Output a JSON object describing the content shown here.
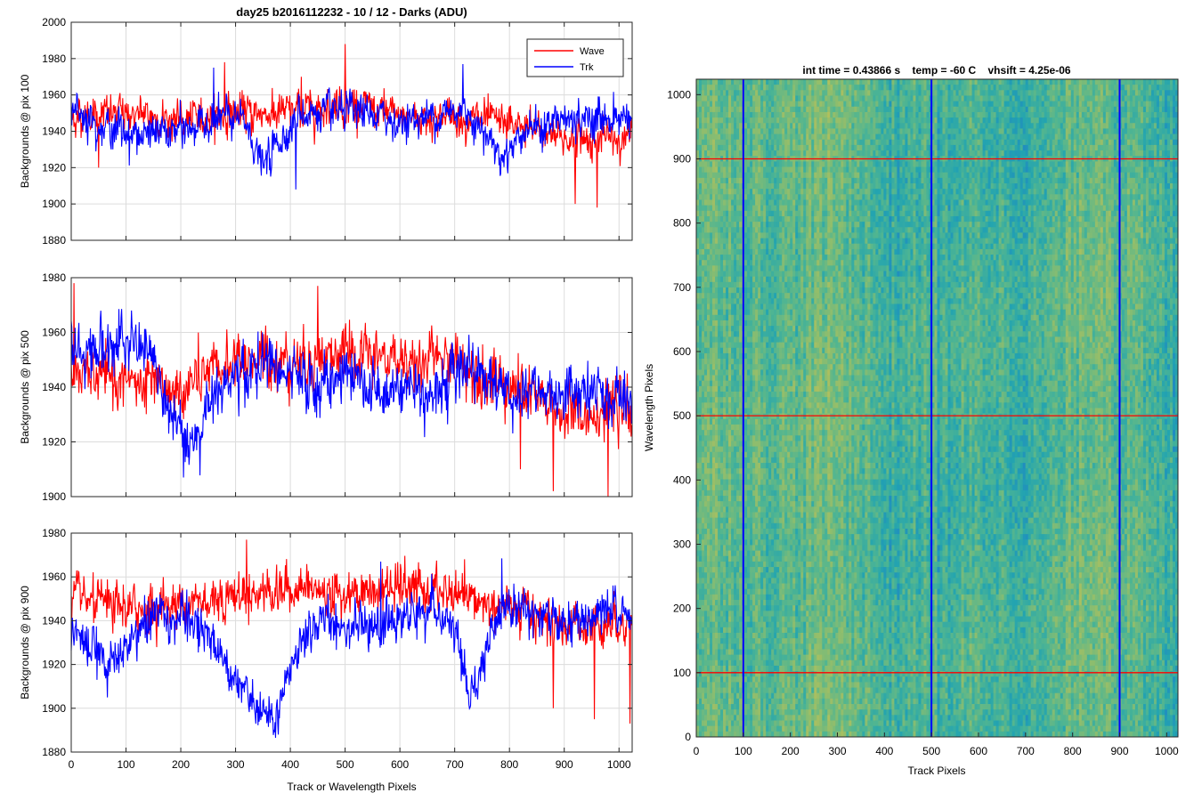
{
  "figure": {
    "title": "day25 b2016112232 - 10 / 12 - Darks (ADU)"
  },
  "chart_data": [
    {
      "type": "line",
      "ylabel": "Backgrounds @ pix 100",
      "xlabel": "",
      "xlim": [
        0,
        1024
      ],
      "ylim": [
        1880,
        2000
      ],
      "xticks": [
        0,
        100,
        200,
        300,
        400,
        500,
        600,
        700,
        800,
        900,
        1000
      ],
      "yticks": [
        1880,
        1900,
        1920,
        1940,
        1960,
        1980,
        2000
      ],
      "grid": true,
      "legend": "top-right",
      "series": [
        {
          "name": "Wave",
          "color": "#ff0000",
          "profile": [
            [
              0,
              1948
            ],
            [
              100,
              1950
            ],
            [
              200,
              1946
            ],
            [
              300,
              1950
            ],
            [
              400,
              1950
            ],
            [
              500,
              1956
            ],
            [
              600,
              1948
            ],
            [
              700,
              1948
            ],
            [
              800,
              1944
            ],
            [
              900,
              1936
            ],
            [
              1024,
              1936
            ]
          ],
          "spikes": [
            [
              500,
              1988
            ],
            [
              280,
              1978
            ],
            [
              420,
              1970
            ],
            [
              960,
              1898
            ],
            [
              920,
              1900
            ],
            [
              50,
              1920
            ]
          ]
        },
        {
          "name": "Trk",
          "color": "#0000ff",
          "profile": [
            [
              0,
              1955
            ],
            [
              50,
              1944
            ],
            [
              120,
              1938
            ],
            [
              200,
              1940
            ],
            [
              280,
              1948
            ],
            [
              320,
              1944
            ],
            [
              350,
              1920
            ],
            [
              380,
              1935
            ],
            [
              420,
              1950
            ],
            [
              500,
              1950
            ],
            [
              560,
              1948
            ],
            [
              600,
              1945
            ],
            [
              680,
              1950
            ],
            [
              720,
              1952
            ],
            [
              760,
              1938
            ],
            [
              790,
              1925
            ],
            [
              820,
              1940
            ],
            [
              900,
              1946
            ],
            [
              1024,
              1948
            ]
          ],
          "spikes": [
            [
              260,
              1975
            ],
            [
              410,
              1908
            ],
            [
              715,
              1977
            ]
          ]
        }
      ]
    },
    {
      "type": "line",
      "ylabel": "Backgrounds @ pix 500",
      "xlabel": "",
      "xlim": [
        0,
        1024
      ],
      "ylim": [
        1900,
        1980
      ],
      "xticks": [
        0,
        100,
        200,
        300,
        400,
        500,
        600,
        700,
        800,
        900,
        1000
      ],
      "yticks": [
        1900,
        1920,
        1940,
        1960,
        1980
      ],
      "grid": true,
      "series": [
        {
          "name": "Wave",
          "color": "#ff0000",
          "profile": [
            [
              0,
              1945
            ],
            [
              100,
              1942
            ],
            [
              200,
              1938
            ],
            [
              300,
              1950
            ],
            [
              400,
              1950
            ],
            [
              500,
              1952
            ],
            [
              600,
              1950
            ],
            [
              700,
              1950
            ],
            [
              800,
              1940
            ],
            [
              900,
              1930
            ],
            [
              1024,
              1932
            ]
          ],
          "spikes": [
            [
              5,
              1978
            ],
            [
              450,
              1977
            ],
            [
              980,
              1900
            ],
            [
              880,
              1902
            ],
            [
              820,
              1910
            ]
          ]
        },
        {
          "name": "Trk",
          "color": "#0000ff",
          "profile": [
            [
              0,
              1952
            ],
            [
              60,
              1955
            ],
            [
              120,
              1955
            ],
            [
              150,
              1950
            ],
            [
              180,
              1930
            ],
            [
              210,
              1918
            ],
            [
              240,
              1928
            ],
            [
              260,
              1940
            ],
            [
              300,
              1942
            ],
            [
              360,
              1950
            ],
            [
              400,
              1942
            ],
            [
              450,
              1940
            ],
            [
              500,
              1945
            ],
            [
              560,
              1938
            ],
            [
              600,
              1942
            ],
            [
              640,
              1938
            ],
            [
              680,
              1940
            ],
            [
              720,
              1950
            ],
            [
              760,
              1944
            ],
            [
              800,
              1938
            ],
            [
              900,
              1938
            ],
            [
              1024,
              1935
            ]
          ],
          "spikes": [
            [
              110,
              1968
            ],
            [
              205,
              1907
            ]
          ]
        }
      ]
    },
    {
      "type": "line",
      "ylabel": "Backgrounds @ pix 900",
      "xlabel": "Track or Wavelength Pixels",
      "xlim": [
        0,
        1024
      ],
      "ylim": [
        1880,
        1980
      ],
      "xticks": [
        0,
        100,
        200,
        300,
        400,
        500,
        600,
        700,
        800,
        900,
        1000
      ],
      "yticks": [
        1880,
        1900,
        1920,
        1940,
        1960,
        1980
      ],
      "grid": true,
      "series": [
        {
          "name": "Wave",
          "color": "#ff0000",
          "profile": [
            [
              0,
              1950
            ],
            [
              100,
              1945
            ],
            [
              200,
              1948
            ],
            [
              300,
              1952
            ],
            [
              400,
              1955
            ],
            [
              500,
              1952
            ],
            [
              600,
              1955
            ],
            [
              700,
              1952
            ],
            [
              800,
              1945
            ],
            [
              900,
              1938
            ],
            [
              1024,
              1940
            ]
          ],
          "spikes": [
            [
              320,
              1977
            ],
            [
              1020,
              1893
            ],
            [
              955,
              1895
            ],
            [
              880,
              1900
            ]
          ]
        },
        {
          "name": "Trk",
          "color": "#0000ff",
          "profile": [
            [
              0,
              1935
            ],
            [
              50,
              1925
            ],
            [
              80,
              1920
            ],
            [
              120,
              1935
            ],
            [
              160,
              1945
            ],
            [
              200,
              1940
            ],
            [
              240,
              1935
            ],
            [
              280,
              1925
            ],
            [
              320,
              1905
            ],
            [
              370,
              1892
            ],
            [
              400,
              1915
            ],
            [
              430,
              1935
            ],
            [
              460,
              1940
            ],
            [
              500,
              1940
            ],
            [
              560,
              1935
            ],
            [
              600,
              1942
            ],
            [
              660,
              1945
            ],
            [
              700,
              1935
            ],
            [
              725,
              1905
            ],
            [
              760,
              1925
            ],
            [
              790,
              1950
            ],
            [
              830,
              1945
            ],
            [
              900,
              1938
            ],
            [
              1024,
              1945
            ]
          ],
          "spikes": [
            [
              378,
              1888
            ],
            [
              565,
              1967
            ]
          ]
        }
      ]
    },
    {
      "type": "heatmap",
      "title": "int time = 0.43866 s    temp = -60 C    vhsift = 4.25e-06",
      "xlabel": "Track Pixels",
      "ylabel": "Wavelength Pixels",
      "xlim": [
        0,
        1024
      ],
      "ylim": [
        0,
        1024
      ],
      "xticks": [
        0,
        100,
        200,
        300,
        400,
        500,
        600,
        700,
        800,
        900,
        1000
      ],
      "yticks": [
        0,
        100,
        200,
        300,
        400,
        500,
        600,
        700,
        800,
        900,
        1000
      ],
      "colormap": [
        "#1f82c6",
        "#23a4b0",
        "#4fb592",
        "#8bbd6f",
        "#b3c05c"
      ],
      "vertical_markers": {
        "values": [
          100,
          500,
          900
        ],
        "color": "#0000ff"
      },
      "horizontal_markers": {
        "values": [
          100,
          500,
          900
        ],
        "color": "#ff0000"
      }
    }
  ]
}
